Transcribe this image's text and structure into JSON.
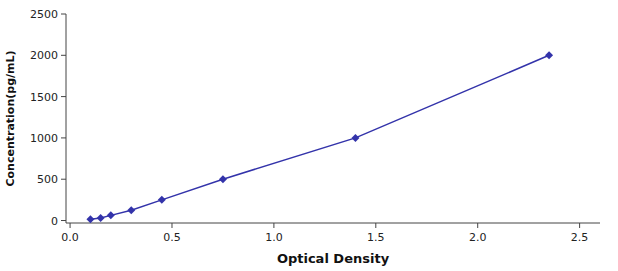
{
  "chart_data": {
    "type": "line",
    "x": [
      0.1,
      0.15,
      0.2,
      0.3,
      0.45,
      0.75,
      1.4,
      2.35
    ],
    "values": [
      15.6,
      31.2,
      62.5,
      125,
      250,
      500,
      1000,
      2000
    ],
    "color": "#3333AA",
    "marker": "diamond",
    "xlabel": "Optical Density",
    "ylabel": "Concentration(pg/mL)",
    "xlim": [
      -0.02,
      2.6
    ],
    "ylim": [
      -30,
      2500
    ],
    "xticks": [
      {
        "value": 0,
        "label": "0.0"
      },
      0.5,
      {
        "value": 1,
        "label": "1.0"
      },
      1.5,
      {
        "value": 2,
        "label": "2.0"
      },
      2.5
    ],
    "yticks": [
      0,
      500,
      1000,
      1500,
      2000,
      2500
    ],
    "grid": false
  }
}
